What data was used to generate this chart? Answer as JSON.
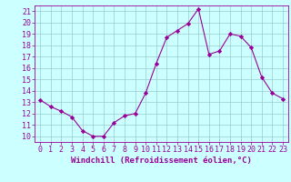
{
  "hours": [
    0,
    1,
    2,
    3,
    4,
    5,
    6,
    7,
    8,
    9,
    10,
    11,
    12,
    13,
    14,
    15,
    16,
    17,
    18,
    19,
    20,
    21,
    22,
    23
  ],
  "windchill": [
    13.2,
    12.6,
    12.2,
    11.7,
    10.5,
    10.0,
    10.0,
    11.2,
    11.8,
    12.0,
    13.8,
    16.4,
    18.7,
    19.3,
    19.9,
    21.2,
    17.2,
    17.5,
    19.0,
    18.8,
    17.8,
    15.2,
    13.8,
    13.3
  ],
  "line_color": "#990099",
  "marker": "D",
  "marker_size": 2.2,
  "bg_color": "#ccffff",
  "grid_color": "#99cccc",
  "xlabel": "Windchill (Refroidissement éolien,°C)",
  "ylim": [
    9.5,
    21.5
  ],
  "xlim": [
    -0.5,
    23.5
  ],
  "yticks": [
    10,
    11,
    12,
    13,
    14,
    15,
    16,
    17,
    18,
    19,
    20,
    21
  ],
  "xticks": [
    0,
    1,
    2,
    3,
    4,
    5,
    6,
    7,
    8,
    9,
    10,
    11,
    12,
    13,
    14,
    15,
    16,
    17,
    18,
    19,
    20,
    21,
    22,
    23
  ],
  "xlabel_fontsize": 6.5,
  "tick_fontsize": 6.0,
  "line_width": 0.8
}
